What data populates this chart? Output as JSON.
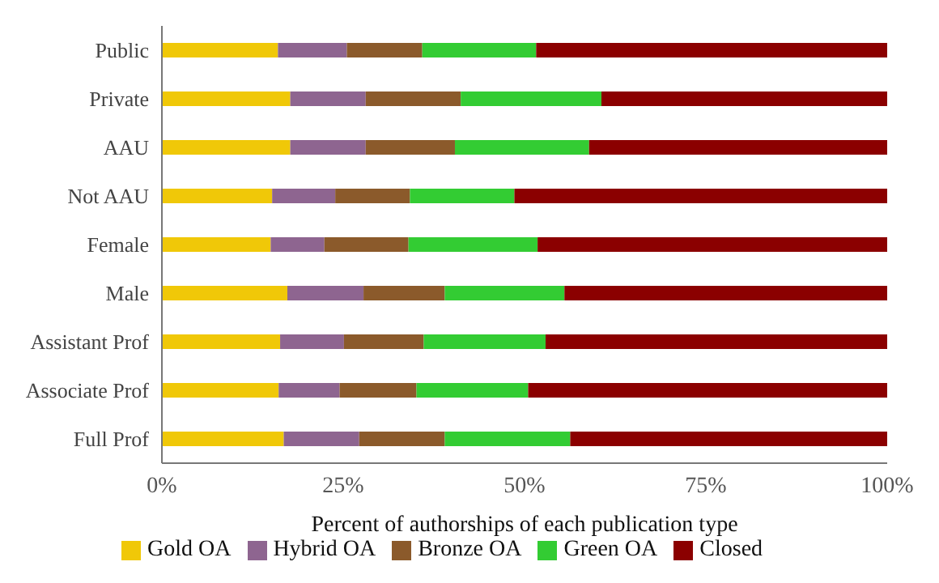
{
  "chart_data": {
    "type": "bar",
    "orientation": "horizontal",
    "stacked": true,
    "xlabel": "Percent of authorships of each publication type",
    "categories": [
      "Public",
      "Private",
      "AAU",
      "Not AAU",
      "Female",
      "Male",
      "Assistant Prof",
      "Associate Prof",
      "Full Prof"
    ],
    "series": [
      {
        "name": "Gold OA",
        "color": "#f0c808",
        "values": [
          16.0,
          17.7,
          17.7,
          15.2,
          15.0,
          17.3,
          16.3,
          16.1,
          16.8
        ]
      },
      {
        "name": "Hybrid OA",
        "color": "#8e6590",
        "values": [
          9.5,
          10.4,
          10.4,
          8.7,
          7.4,
          10.5,
          8.8,
          8.4,
          10.4
        ]
      },
      {
        "name": "Bronze OA",
        "color": "#8b5a2b",
        "values": [
          10.4,
          13.1,
          12.3,
          10.3,
          11.6,
          11.2,
          11.0,
          10.6,
          11.8
        ]
      },
      {
        "name": "Green OA",
        "color": "#33cc33",
        "values": [
          15.7,
          19.4,
          18.5,
          14.4,
          17.8,
          16.5,
          16.8,
          15.4,
          17.3
        ]
      },
      {
        "name": "Closed",
        "color": "#8b0000",
        "values": [
          48.4,
          39.4,
          41.1,
          51.4,
          48.2,
          44.5,
          47.1,
          49.5,
          43.7
        ]
      }
    ],
    "xlim": [
      0,
      100
    ],
    "xticks": [
      {
        "value": 0,
        "label": "0%"
      },
      {
        "value": 25,
        "label": "25%"
      },
      {
        "value": 50,
        "label": "50%"
      },
      {
        "value": 75,
        "label": "75%"
      },
      {
        "value": 100,
        "label": "100%"
      }
    ],
    "legend": "bottom",
    "grid": false
  }
}
